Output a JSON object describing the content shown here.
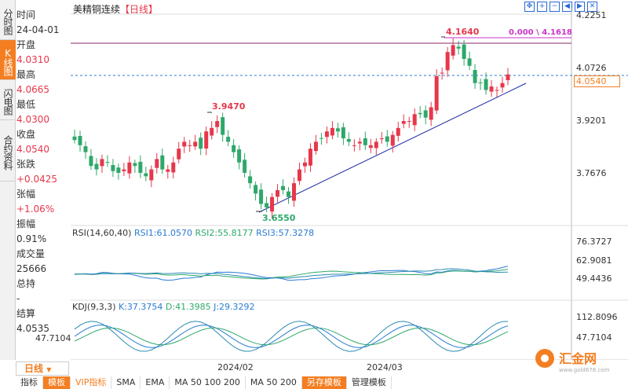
{
  "side_tabs": [
    "分时图",
    "K线图",
    "闪电图",
    "合约资料"
  ],
  "active_tab_index": 1,
  "info": {
    "time_label": "时间",
    "time_value": "24-04-01",
    "open_label": "开盘",
    "open_value": "4.0310",
    "high_label": "最高",
    "high_value": "4.0665",
    "low_label": "最低",
    "low_value": "4.0300",
    "close_label": "收盘",
    "close_value": "4.0540",
    "change_label": "张跌",
    "change_value": "+0.0425",
    "pct_label": "张幅",
    "pct_value": "+1.06%",
    "amp_label": "振幅",
    "amp_value": "0.91%",
    "vol_label": "成交量",
    "vol_value": "25666",
    "oi_label": "总持",
    "oi_value": "-",
    "settle_label": "结算",
    "settle_value": "4.0535"
  },
  "chart": {
    "title": "美精铜连续",
    "timeframe": "【日线】",
    "price_box": "4.0540",
    "y_labels": [
      "4.2251",
      "4.0726",
      "3.9201",
      "3.7676"
    ],
    "high_marker": "4.1640",
    "low_marker": "3.6550",
    "peak_marker": "3.9470",
    "line_label_left": "0.000",
    "line_label_right": "4.1618",
    "x_labels": [
      "2024/02",
      "2024/03"
    ]
  },
  "rsi": {
    "title": "RSI(14,60,40)",
    "rsi1": "RSI1:61.0570",
    "rsi2": "RSI2:55.8177",
    "rsi3": "RSI3:57.3278",
    "y_labels": [
      "76.3727",
      "62.9081",
      "49.4436"
    ]
  },
  "kdj": {
    "title": "KDJ(9,3,3)",
    "k": "K:37.3754",
    "d": "D:41.3985",
    "j": "J:29.3292",
    "y_labels": [
      "112.8096",
      "47.7104"
    ],
    "left_label": "47.7104"
  },
  "period_button": "日线",
  "toolbar": [
    "指标",
    "模板",
    "VIP指标",
    "SMA",
    "EMA",
    "MA 50 100 200",
    "MA 50 200",
    "另存模板",
    "管理模板"
  ],
  "logo_text": "汇金网",
  "logo_sub": "www.gold678.com",
  "colors": {
    "up": "#e6374b",
    "down": "#2ea86a",
    "accent": "#f47e21"
  }
}
